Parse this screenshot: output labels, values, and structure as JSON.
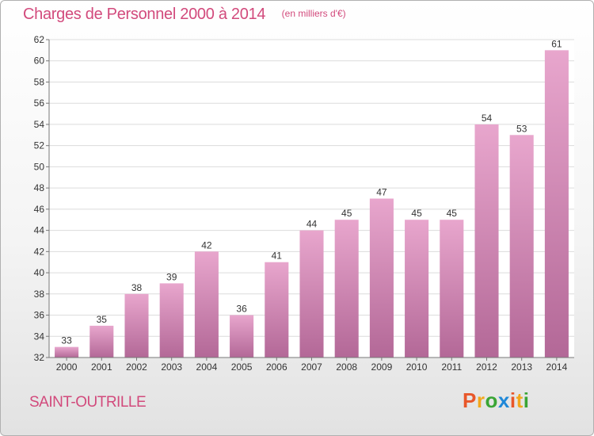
{
  "header": {
    "title": "Charges de Personnel 2000 à 2014",
    "subtitle": "(en milliers d'€)"
  },
  "footer": {
    "commune": "SAINT-OUTRILLE",
    "logo_text": "Proxiti"
  },
  "colors": {
    "accent": "#d24a7c",
    "bar_top": "#e8a6cd",
    "bar_bottom": "#b36897",
    "logo_letters": [
      "#e8572a",
      "#f2a81d",
      "#3aa535",
      "#1f88d8",
      "#e8572a",
      "#f2a81d",
      "#3aa535"
    ]
  },
  "chart_data": {
    "type": "bar",
    "categories": [
      "2000",
      "2001",
      "2002",
      "2003",
      "2004",
      "2005",
      "2006",
      "2007",
      "2008",
      "2009",
      "2010",
      "2011",
      "2012",
      "2013",
      "2014"
    ],
    "values": [
      33,
      35,
      38,
      39,
      42,
      36,
      41,
      44,
      45,
      47,
      45,
      45,
      54,
      53,
      61
    ],
    "ylim": [
      32,
      62
    ],
    "yticks": [
      32,
      34,
      36,
      38,
      40,
      42,
      44,
      46,
      48,
      50,
      52,
      54,
      56,
      58,
      60,
      62
    ],
    "grid": true
  }
}
